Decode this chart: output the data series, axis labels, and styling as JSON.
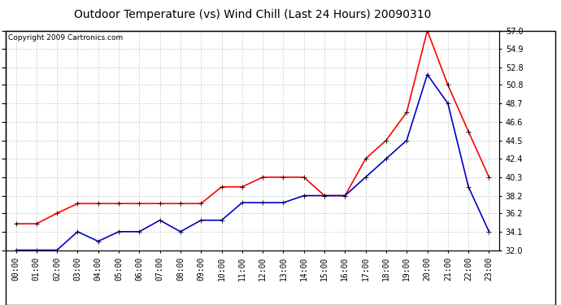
{
  "title": "Outdoor Temperature (vs) Wind Chill (Last 24 Hours) 20090310",
  "copyright": "Copyright 2009 Cartronics.com",
  "hours": [
    "00:00",
    "01:00",
    "02:00",
    "03:00",
    "04:00",
    "05:00",
    "06:00",
    "07:00",
    "08:00",
    "09:00",
    "10:00",
    "11:00",
    "12:00",
    "13:00",
    "14:00",
    "15:00",
    "16:00",
    "17:00",
    "18:00",
    "19:00",
    "20:00",
    "21:00",
    "22:00",
    "23:00"
  ],
  "outdoor_temp": [
    35.0,
    35.0,
    36.2,
    37.3,
    37.3,
    37.3,
    37.3,
    37.3,
    37.3,
    37.3,
    39.2,
    39.2,
    40.3,
    40.3,
    40.3,
    38.2,
    38.2,
    42.4,
    44.5,
    47.7,
    57.0,
    50.8,
    45.5,
    40.3
  ],
  "wind_chill": [
    32.0,
    32.0,
    32.0,
    34.1,
    33.0,
    34.1,
    34.1,
    35.4,
    34.1,
    35.4,
    35.4,
    37.4,
    37.4,
    37.4,
    38.2,
    38.2,
    38.2,
    40.3,
    42.4,
    44.5,
    52.0,
    48.7,
    39.2,
    34.1
  ],
  "temp_color": "#ff0000",
  "wind_chill_color": "#0000cc",
  "background_color": "#ffffff",
  "plot_bg_color": "#ffffff",
  "grid_color": "#cccccc",
  "ylim": [
    32.0,
    57.0
  ],
  "yticks": [
    32.0,
    34.1,
    36.2,
    38.2,
    40.3,
    42.4,
    44.5,
    46.6,
    48.7,
    50.8,
    52.8,
    54.9,
    57.0
  ],
  "title_fontsize": 10,
  "copyright_fontsize": 6.5,
  "tick_fontsize": 7,
  "marker": "+",
  "marker_size": 5,
  "linewidth": 1.2
}
